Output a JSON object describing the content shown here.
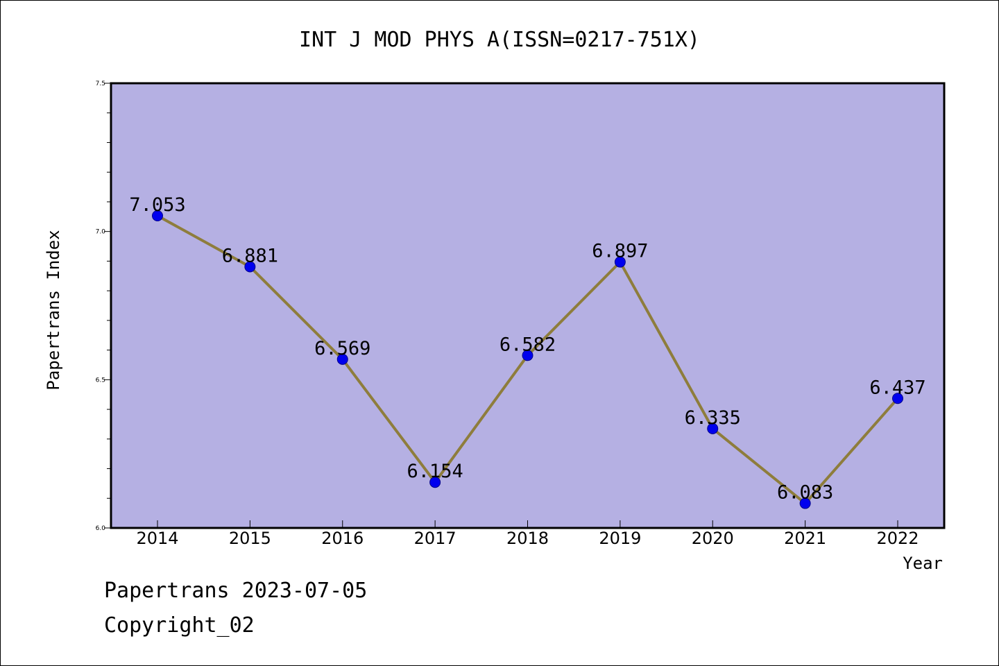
{
  "chart_data": {
    "type": "line",
    "title": "INT J MOD PHYS A(ISSN=0217-751X)",
    "xlabel": "Year",
    "ylabel": "Papertrans Index",
    "categories": [
      "2014",
      "2015",
      "2016",
      "2017",
      "2018",
      "2019",
      "2020",
      "2021",
      "2022"
    ],
    "series": [
      {
        "values": [
          7.053,
          6.881,
          6.569,
          6.154,
          6.582,
          6.897,
          6.335,
          6.083,
          6.437
        ],
        "data_labels": [
          "7.053",
          "6.881",
          "6.569",
          "6.154",
          "6.582",
          "6.897",
          "6.335",
          "6.083",
          "6.437"
        ]
      }
    ],
    "ylim": [
      6.0,
      7.5
    ],
    "yticks": [
      6.0,
      6.5,
      7.0,
      7.5
    ],
    "ytick_labels": [
      "6.0",
      "6.5",
      "7.0",
      "7.5"
    ],
    "y_minor_step": 0.1,
    "grid": false,
    "colors": {
      "plot_background": "#b5b0e3",
      "line": "#8e7d3c",
      "marker": "#0000ee",
      "axis": "#000000"
    }
  },
  "footer": {
    "source": "Papertrans 2023-07-05",
    "copyright": "Copyright_02"
  }
}
